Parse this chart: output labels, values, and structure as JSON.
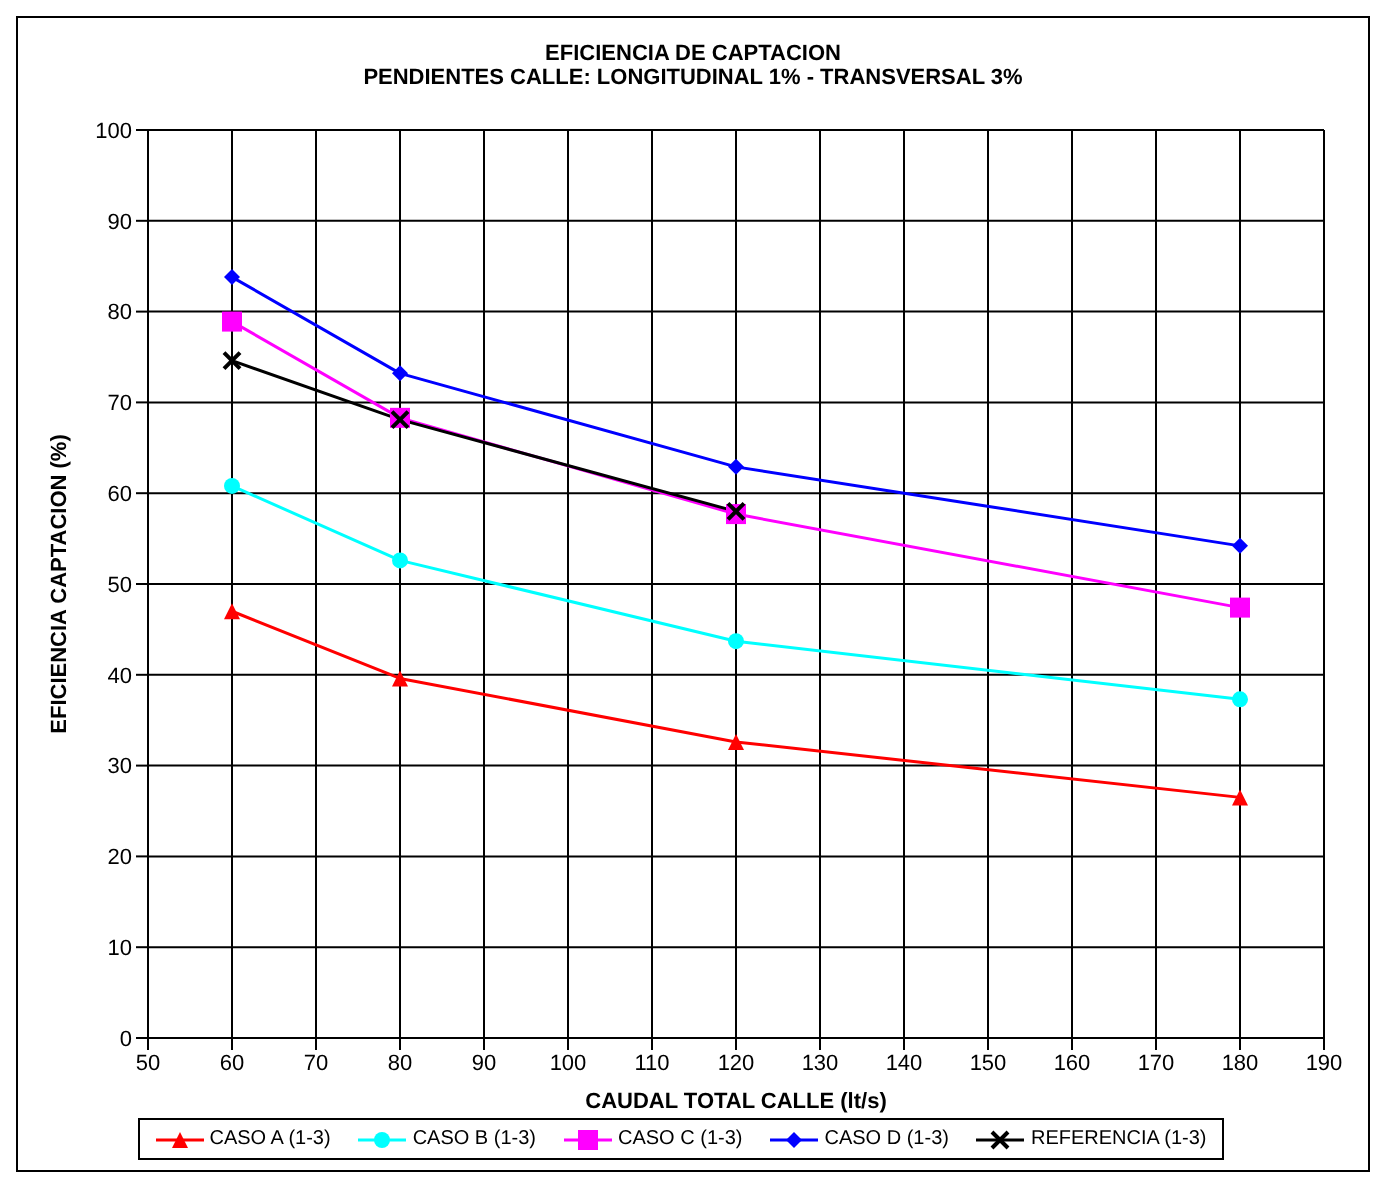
{
  "chart_data": {
    "type": "line",
    "title": "EFICIENCIA DE CAPTACION",
    "subtitle": "PENDIENTES CALLE:  LONGITUDINAL 1% - TRANSVERSAL 3%",
    "xlabel": "CAUDAL TOTAL CALLE  (lt/s)",
    "ylabel": "EFICIENCIA  CAPTACION (%)",
    "x": [
      60,
      80,
      120,
      180
    ],
    "series": [
      {
        "name": "CASO A (1-3)",
        "color": "#ff0000",
        "marker": "triangle",
        "values": [
          47,
          39.6,
          32.6,
          26.5
        ]
      },
      {
        "name": "CASO B (1-3)",
        "color": "#00ffff",
        "marker": "circle",
        "values": [
          60.8,
          52.6,
          43.7,
          37.3
        ]
      },
      {
        "name": "CASO C (1-3)",
        "color": "#ff00ff",
        "marker": "square",
        "values": [
          78.9,
          68.3,
          57.7,
          47.4
        ]
      },
      {
        "name": "CASO D (1-3)",
        "color": "#0000ff",
        "marker": "diamond",
        "values": [
          83.8,
          73.2,
          62.9,
          54.2
        ]
      },
      {
        "name": "REFERENCIA (1-3)",
        "color": "#000000",
        "marker": "cross",
        "values": [
          74.6,
          68.1,
          58.0,
          null
        ]
      }
    ],
    "xlim": [
      50,
      190
    ],
    "xticks": [
      50,
      60,
      70,
      80,
      90,
      100,
      110,
      120,
      130,
      140,
      150,
      160,
      170,
      180,
      190
    ],
    "ylim": [
      0,
      100
    ],
    "yticks": [
      0,
      10,
      20,
      30,
      40,
      50,
      60,
      70,
      80,
      90,
      100
    ],
    "grid": true,
    "legend": "bottom",
    "line_style": "solid"
  }
}
